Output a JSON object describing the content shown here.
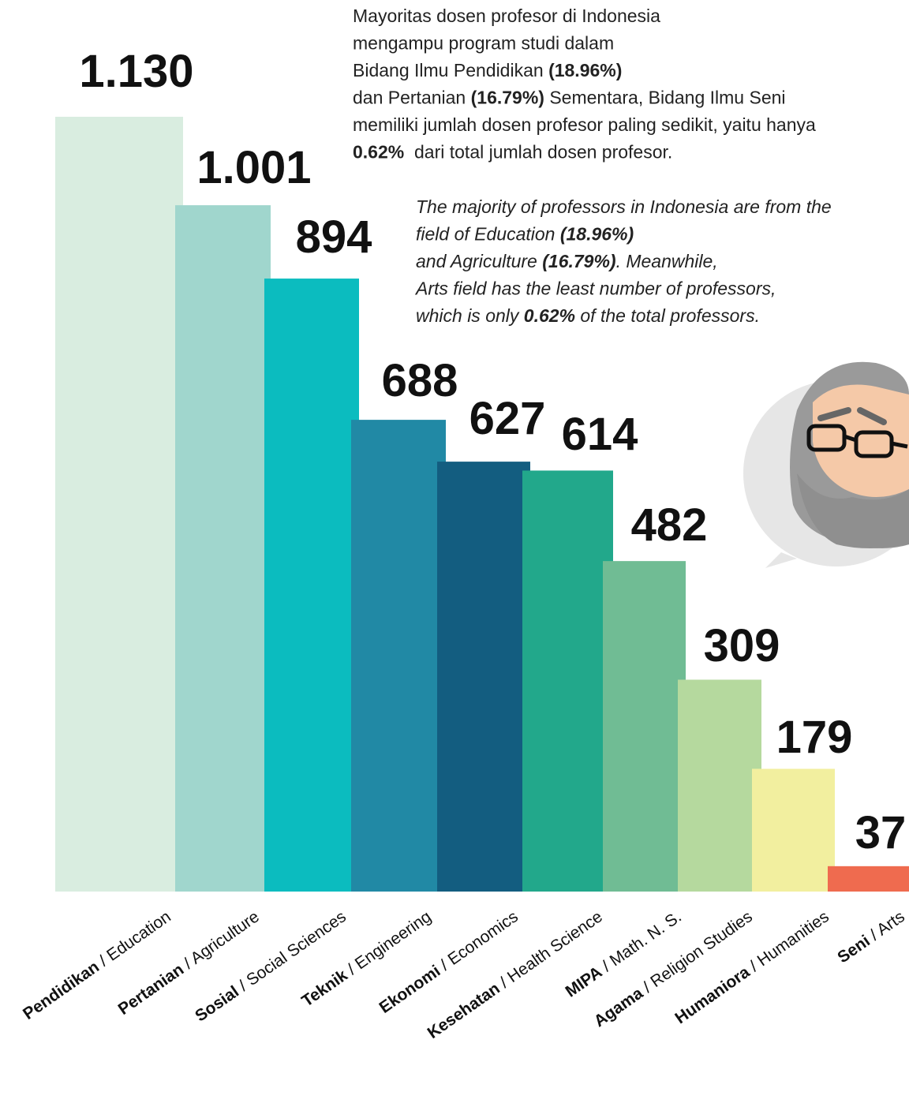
{
  "chart_data": {
    "type": "bar",
    "categories": [
      "Pendidikan / Education",
      "Pertanian / Agriculture",
      "Sosial / Social Sciences",
      "Teknik / Engineering",
      "Ekonomi / Economics",
      "Kesehatan / Health Science",
      "MIPA / Math. N. S.",
      "Agama / Religion Studies",
      "Humaniora / Humanities",
      "Seni / Arts"
    ],
    "values": [
      1130,
      1001,
      894,
      688,
      627,
      614,
      482,
      309,
      179,
      37
    ],
    "value_labels": [
      "1.130",
      "1.001",
      "894",
      "688",
      "627",
      "614",
      "482",
      "309",
      "179",
      "37"
    ],
    "colors": [
      "#d9ede0",
      "#a0d6cd",
      "#0bbcbf",
      "#2189a5",
      "#135d80",
      "#22a88b",
      "#70bc94",
      "#b5d99e",
      "#f2ef9f",
      "#ef6b4f"
    ],
    "annotations": [
      {
        "style": "normal",
        "lines": [
          [
            {
              "text": "Mayoritas dosen profesor di Indonesia",
              "bold": false
            }
          ],
          [
            {
              "text": "mengampu program studi dalam",
              "bold": false
            }
          ],
          [
            {
              "text": "Bidang Ilmu Pendidikan ",
              "bold": false
            },
            {
              "text": "(18.96%)",
              "bold": true
            }
          ],
          [
            {
              "text": "dan Pertanian ",
              "bold": false
            },
            {
              "text": "(16.79%)",
              "bold": true
            },
            {
              "text": " Sementara, Bidang Ilmu Seni",
              "bold": false
            }
          ],
          [
            {
              "text": "memiliki jumlah dosen profesor paling sedikit, yaitu hanya",
              "bold": false
            }
          ],
          [
            {
              "text": "0.62%",
              "bold": true
            },
            {
              "text": "  dari total jumlah dosen profesor.",
              "bold": false
            }
          ]
        ]
      },
      {
        "style": "italic",
        "lines": [
          [
            {
              "text": "The majority of professors in Indonesia are from the",
              "bold": false
            }
          ],
          [
            {
              "text": "field of Education ",
              "bold": false
            },
            {
              "text": "(18.96%)",
              "bold": true
            }
          ],
          [
            {
              "text": "and Agriculture ",
              "bold": false
            },
            {
              "text": "(16.79%)",
              "bold": true
            },
            {
              "text": ". Meanwhile,",
              "bold": false
            }
          ],
          [
            {
              "text": "Arts field has the least number of professors,",
              "bold": false
            }
          ],
          [
            {
              "text": "which is only ",
              "bold": false
            },
            {
              "text": "0.62%",
              "bold": true
            },
            {
              "text": " of the total professors.",
              "bold": false
            }
          ]
        ]
      }
    ]
  }
}
